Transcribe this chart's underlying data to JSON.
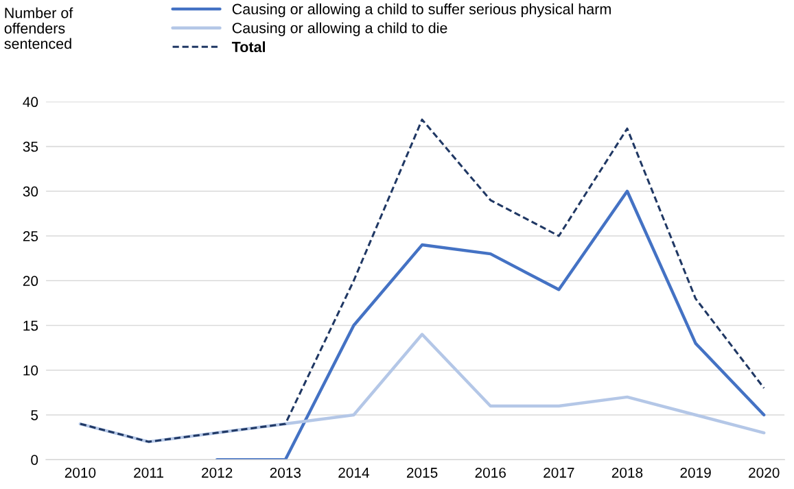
{
  "chart_data": {
    "type": "line",
    "ylabel": "Number of\noffenders\nsentenced",
    "categories": [
      "2010",
      "2011",
      "2012",
      "2013",
      "2014",
      "2015",
      "2016",
      "2017",
      "2018",
      "2019",
      "2020"
    ],
    "series": [
      {
        "name": "Causing or allowing a child to suffer serious physical harm",
        "color": "#4472c4",
        "line_style": "solid",
        "values": [
          null,
          null,
          0,
          0,
          15,
          24,
          23,
          19,
          30,
          13,
          5
        ]
      },
      {
        "name": "Causing or allowing a child to die",
        "color": "#b4c7e7",
        "line_style": "solid",
        "values": [
          4,
          2,
          3,
          4,
          5,
          14,
          6,
          6,
          7,
          5,
          3
        ]
      },
      {
        "name": "Total",
        "color": "#203864",
        "line_style": "dashed",
        "values": [
          4,
          2,
          3,
          4,
          20,
          38,
          29,
          25,
          37,
          18,
          8
        ]
      }
    ],
    "ylim": [
      0,
      40
    ],
    "yticks": [
      0,
      5,
      10,
      15,
      20,
      25,
      30,
      35,
      40
    ],
    "grid": "y",
    "legend": "top",
    "marker": "none"
  }
}
